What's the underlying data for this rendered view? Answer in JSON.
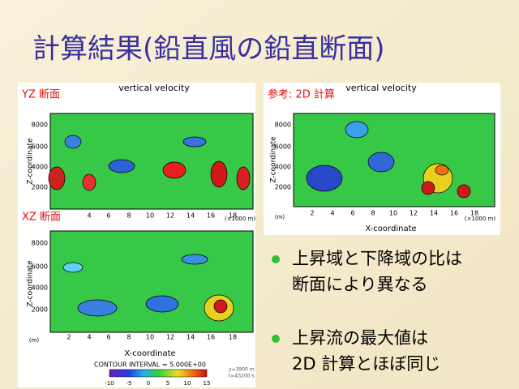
{
  "title": "計算結果(鉛直風の鉛直断面)",
  "panels": [
    {
      "label": "YZ 断面",
      "plot_title": "vertical velocity",
      "y_axis_label": "Z-coordinate",
      "y_ticks": [
        "8000",
        "6000",
        "4000",
        "2000"
      ],
      "x_ticks": [
        "4",
        "6",
        "8",
        "10",
        "12",
        "14",
        "16",
        "18"
      ],
      "x_unit": "(×1000 m)"
    },
    {
      "label": "参考: 2D 計算",
      "plot_title": "vertical velocity",
      "y_axis_label": "Z-coordinate",
      "y_ticks": [
        "8000",
        "6000",
        "4000",
        "2000"
      ],
      "x_ticks": [
        "2",
        "4",
        "6",
        "8",
        "10",
        "12",
        "14",
        "16",
        "18"
      ],
      "x_unit": "(×1000 m)",
      "y_unit": "(m)",
      "x_axis_label": "X-coordinate"
    },
    {
      "label": "XZ 断面",
      "y_axis_label": "Z-coordinate",
      "y_ticks": [
        "8000",
        "6000",
        "4000",
        "2000"
      ],
      "x_ticks": [
        "2",
        "4",
        "6",
        "8",
        "10",
        "12",
        "14",
        "16",
        "18"
      ],
      "y_unit": "(m)",
      "x_axis_label": "X-coordinate",
      "contour_interval": "CONTOUR INTERVAL = 5.000E+00",
      "colorbar_labels": [
        "-10",
        "-5",
        "0",
        "5",
        "10",
        "15"
      ],
      "info": [
        "y=3900 m",
        "t=43200 s"
      ]
    }
  ],
  "bullets": [
    {
      "lines": [
        "上昇域と下降域の比は",
        "断面により異なる"
      ]
    },
    {
      "lines": [
        "上昇流の最大値は",
        " 2D 計算とほぼ同じ"
      ]
    }
  ]
}
